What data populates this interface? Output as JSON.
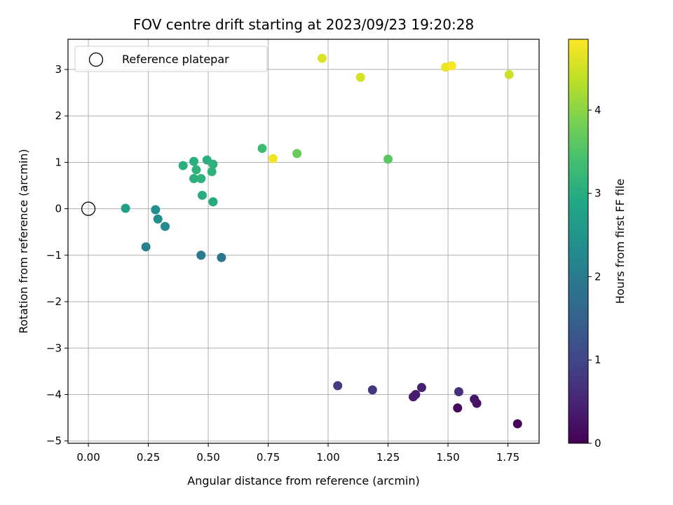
{
  "chart_data": {
    "type": "scatter",
    "title": "FOV centre drift starting at 2023/09/23 19:20:28",
    "xlabel": "Angular distance from reference (arcmin)",
    "ylabel": "Rotation from reference (arcmin)",
    "xlim": [
      -0.085,
      1.88
    ],
    "ylim": [
      -5.05,
      3.65
    ],
    "xticks": [
      0.0,
      0.25,
      0.5,
      0.75,
      1.0,
      1.25,
      1.5,
      1.75
    ],
    "xtick_labels": [
      "0.00",
      "0.25",
      "0.50",
      "0.75",
      "1.00",
      "1.25",
      "1.50",
      "1.75"
    ],
    "yticks": [
      -5,
      -4,
      -3,
      -2,
      -1,
      0,
      1,
      2,
      3
    ],
    "ytick_labels": [
      "−5",
      "−4",
      "−3",
      "−2",
      "−1",
      "0",
      "1",
      "2",
      "3"
    ],
    "grid": true,
    "legend": {
      "position": "top-left",
      "entries": [
        "Reference platepar"
      ]
    },
    "reference_point": {
      "x": 0.0,
      "y": 0.0
    },
    "colorbar": {
      "label": "Hours from first FF file",
      "range": [
        0,
        4.85
      ],
      "ticks": [
        0,
        1,
        2,
        3,
        4
      ],
      "tick_labels": [
        "0",
        "1",
        "2",
        "3",
        "4"
      ],
      "colormap": "viridis"
    },
    "points": [
      {
        "x": 1.79,
        "y": -4.63,
        "hours": 0.05
      },
      {
        "x": 1.54,
        "y": -4.29,
        "hours": 0.15
      },
      {
        "x": 1.62,
        "y": -4.19,
        "hours": 0.25
      },
      {
        "x": 1.61,
        "y": -4.1,
        "hours": 0.3
      },
      {
        "x": 1.355,
        "y": -4.05,
        "hours": 0.35
      },
      {
        "x": 1.365,
        "y": -4.0,
        "hours": 0.4
      },
      {
        "x": 1.39,
        "y": -3.85,
        "hours": 0.45
      },
      {
        "x": 1.545,
        "y": -3.94,
        "hours": 0.65
      },
      {
        "x": 1.185,
        "y": -3.9,
        "hours": 0.75
      },
      {
        "x": 1.04,
        "y": -3.81,
        "hours": 0.85
      },
      {
        "x": 0.555,
        "y": -1.05,
        "hours": 1.9
      },
      {
        "x": 0.47,
        "y": -1.0,
        "hours": 2.0
      },
      {
        "x": 0.24,
        "y": -0.82,
        "hours": 2.1
      },
      {
        "x": 0.32,
        "y": -0.38,
        "hours": 2.3
      },
      {
        "x": 0.29,
        "y": -0.22,
        "hours": 2.35
      },
      {
        "x": 0.28,
        "y": -0.02,
        "hours": 2.4
      },
      {
        "x": 0.155,
        "y": 0.01,
        "hours": 2.75
      },
      {
        "x": 0.52,
        "y": 0.15,
        "hours": 2.95
      },
      {
        "x": 0.475,
        "y": 0.29,
        "hours": 3.0
      },
      {
        "x": 0.44,
        "y": 0.65,
        "hours": 3.05
      },
      {
        "x": 0.47,
        "y": 0.65,
        "hours": 3.1
      },
      {
        "x": 0.515,
        "y": 0.8,
        "hours": 3.1
      },
      {
        "x": 0.45,
        "y": 0.84,
        "hours": 3.1
      },
      {
        "x": 0.395,
        "y": 0.93,
        "hours": 3.05
      },
      {
        "x": 0.44,
        "y": 1.02,
        "hours": 3.05
      },
      {
        "x": 0.495,
        "y": 1.05,
        "hours": 3.05
      },
      {
        "x": 0.52,
        "y": 0.96,
        "hours": 3.1
      },
      {
        "x": 0.725,
        "y": 1.3,
        "hours": 3.3
      },
      {
        "x": 0.87,
        "y": 1.19,
        "hours": 3.7
      },
      {
        "x": 1.25,
        "y": 1.07,
        "hours": 3.6
      },
      {
        "x": 0.77,
        "y": 1.08,
        "hours": 4.75
      },
      {
        "x": 0.975,
        "y": 3.24,
        "hours": 4.6
      },
      {
        "x": 1.135,
        "y": 2.83,
        "hours": 4.55
      },
      {
        "x": 1.49,
        "y": 3.05,
        "hours": 4.7
      },
      {
        "x": 1.515,
        "y": 3.08,
        "hours": 4.8
      },
      {
        "x": 1.755,
        "y": 2.89,
        "hours": 4.5
      }
    ]
  }
}
